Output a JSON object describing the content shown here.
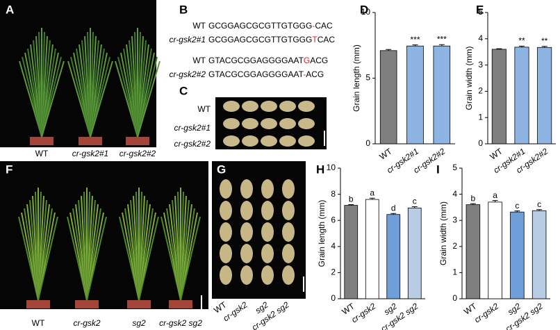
{
  "panels": [
    "A",
    "B",
    "C",
    "D",
    "E",
    "F",
    "G",
    "H",
    "I"
  ],
  "sequences": [
    {
      "label": "WT",
      "before": "GCGGAGCGCGTTGTGGG",
      "mark": "-",
      "after": "CAC"
    },
    {
      "label": "cr-gsk2#1",
      "before": "GCGGAGCGCGTTGTGGG",
      "mark": "T",
      "after": "CAC"
    },
    {
      "label": "WT",
      "before": "GTACGCGGAGGGGAAT",
      "mark": "G",
      "after": "ACG"
    },
    {
      "label": "cr-gsk2#2",
      "before": "GTACGCGGAGGGGAAT",
      "mark": "-",
      "after": "ACG"
    }
  ],
  "photo_labels": {
    "A": [
      "WT",
      "cr-gsk2#1",
      "cr-gsk2#2"
    ],
    "C": [
      "WT",
      "cr-gsk2#1",
      "cr-gsk2#2"
    ],
    "F": [
      "WT",
      "cr-gsk2",
      "sg2",
      "cr-gsk2 sg2"
    ],
    "G": [
      "WT",
      "cr-gsk2",
      "sg2",
      "cr-gsk2 sg2"
    ]
  },
  "chart_data": [
    {
      "type": "bar",
      "y_label": "Grain length (mm)",
      "categories": [
        "WT",
        "cr-gsk2#1",
        "cr-gsk2#2"
      ],
      "values": [
        7.1,
        7.45,
        7.45
      ],
      "errors": [
        0.08,
        0.08,
        0.1
      ],
      "colors": [
        "#7f7f7f",
        "#8eb4e3",
        "#8eb4e3"
      ],
      "annotations": [
        null,
        "***",
        "***"
      ],
      "ylim": [
        0,
        10
      ],
      "yticks": [
        0,
        5,
        10
      ]
    },
    {
      "type": "bar",
      "y_label": "Grain width (mm)",
      "categories": [
        "WT",
        "cr-gsk2#1",
        "cr-gsk2#2"
      ],
      "values": [
        3.6,
        3.68,
        3.67
      ],
      "errors": [
        0.02,
        0.04,
        0.04
      ],
      "colors": [
        "#7f7f7f",
        "#8eb4e3",
        "#8eb4e3"
      ],
      "annotations": [
        null,
        "**",
        "**"
      ],
      "ylim": [
        0,
        5
      ],
      "yticks": [
        0,
        1,
        2,
        3,
        4,
        5
      ]
    },
    {
      "type": "bar",
      "y_label": "Grain length (mm)",
      "categories": [
        "WT",
        "cr-gsk2",
        "sg2",
        "cr-gsk2 sg2"
      ],
      "values": [
        7.15,
        7.6,
        6.45,
        6.95
      ],
      "errors": [
        0.06,
        0.1,
        0.08,
        0.1
      ],
      "colors": [
        "#7f7f7f",
        "#ffffff",
        "#6f9fd8",
        "#b8cce4"
      ],
      "annotations": [
        "b",
        "a",
        "d",
        "c"
      ],
      "ylim": [
        0,
        10
      ],
      "yticks": [
        0,
        2,
        4,
        6,
        8,
        10
      ]
    },
    {
      "type": "bar",
      "y_label": "Grain width (mm)",
      "categories": [
        "WT",
        "cr-gsk2",
        "sg2",
        "cr-gsk2 sg2"
      ],
      "values": [
        3.6,
        3.7,
        3.32,
        3.37
      ],
      "errors": [
        0.04,
        0.06,
        0.04,
        0.04
      ],
      "colors": [
        "#7f7f7f",
        "#ffffff",
        "#6f9fd8",
        "#b8cce4"
      ],
      "annotations": [
        "b",
        "a",
        "c",
        "c"
      ],
      "ylim": [
        0,
        5
      ],
      "yticks": [
        0,
        1,
        2,
        3,
        4,
        5
      ]
    }
  ]
}
